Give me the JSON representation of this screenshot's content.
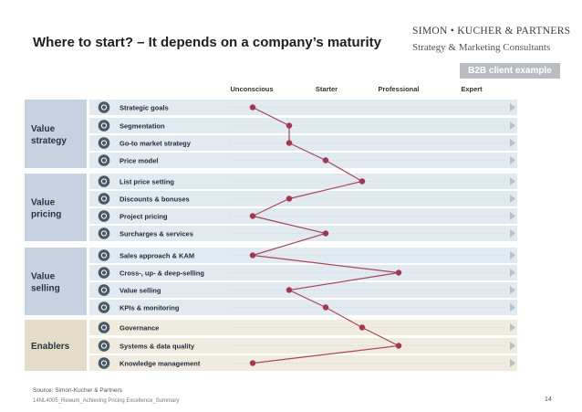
{
  "header": {
    "title": "Where to start? – It depends on a company’s maturity",
    "brand": "SIMON • KUCHER & PARTNERS",
    "subbrand": "Strategy & Marketing Consultants",
    "badge": "B2B client example"
  },
  "maturity_levels": [
    "Unconscious",
    "Starter",
    "Professional",
    "Expert"
  ],
  "colors": {
    "group_blue": "#c5d3e0",
    "row_blue": "#e1e9f1",
    "group_beige": "#e3dcc8",
    "row_beige": "#efebdf",
    "line": "#a7475e",
    "dot": "#a3374f",
    "icon": "#4a5966"
  },
  "groups": [
    {
      "label_lines": [
        "Value",
        "strategy"
      ],
      "tone": "blue",
      "items": [
        {
          "label": "Strategic goals",
          "icon": "target-icon",
          "level": 0
        },
        {
          "label": "Segmentation",
          "icon": "segmentation-icon",
          "level": 1
        },
        {
          "label": "Go-to market strategy",
          "icon": "trend-icon",
          "level": 1
        },
        {
          "label": "Price model",
          "icon": "price-model-icon",
          "level": 2
        }
      ]
    },
    {
      "label_lines": [
        "Value",
        "pricing"
      ],
      "tone": "blue",
      "items": [
        {
          "label": "List price setting",
          "icon": "price-list-icon",
          "level": 3
        },
        {
          "label": "Discounts & bonuses",
          "icon": "discount-icon",
          "level": 1
        },
        {
          "label": "Project pricing",
          "icon": "project-icon",
          "level": 0
        },
        {
          "label": "Surcharges & services",
          "icon": "surcharge-icon",
          "level": 2
        }
      ]
    },
    {
      "label_lines": [
        "Value",
        "selling"
      ],
      "tone": "blue",
      "items": [
        {
          "label": "Sales approach & KAM",
          "icon": "sales-icon",
          "level": 0
        },
        {
          "label": "Cross-, up- & deep-selling",
          "icon": "cross-sell-icon",
          "level": 4
        },
        {
          "label": "Value selling",
          "icon": "value-selling-icon",
          "level": 1
        },
        {
          "label": "KPIs & monitoring",
          "icon": "kpi-icon",
          "level": 2
        }
      ]
    },
    {
      "label_lines": [
        "Enablers"
      ],
      "tone": "beige",
      "items": [
        {
          "label": "Governance",
          "icon": "governance-icon",
          "level": 3
        },
        {
          "label": "Systems & data quality",
          "icon": "systems-icon",
          "level": 4
        },
        {
          "label": "Knowledge management",
          "icon": "knowledge-icon",
          "level": 0
        }
      ]
    }
  ],
  "footer": {
    "source": "Source: Simon-Kucher & Partners",
    "doc_id": "14NL4005_Rewum_Achieving Pricing Excellence_Summary",
    "page": "14"
  }
}
